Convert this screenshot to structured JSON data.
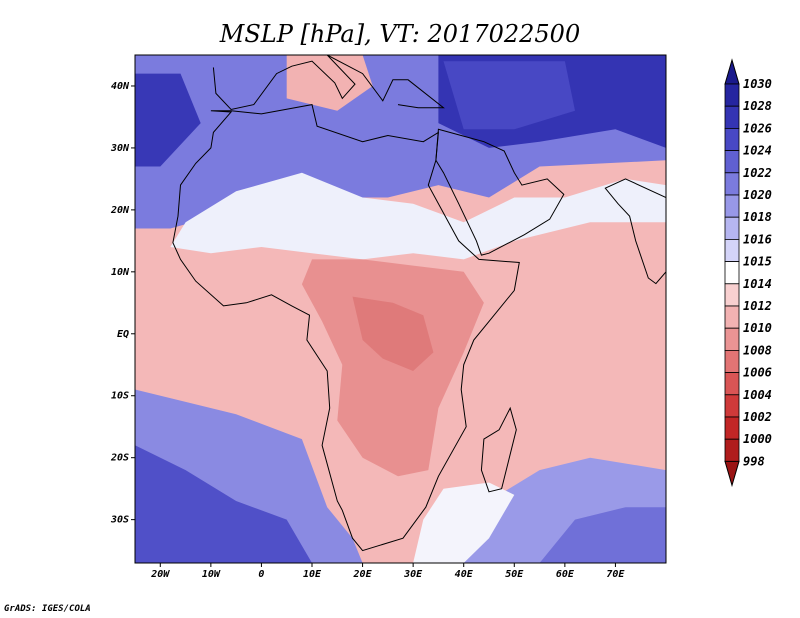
{
  "title": "MSLP [hPa], VT: 2017022500",
  "credit": "GrADS: IGES/COLA",
  "map": {
    "projection": "lat-lon",
    "lon_range": [
      -25,
      80
    ],
    "lat_range": [
      -37,
      45
    ],
    "lon_ticks": [
      {
        "value": -20,
        "label": "20W"
      },
      {
        "value": -10,
        "label": "10W"
      },
      {
        "value": 0,
        "label": "0"
      },
      {
        "value": 10,
        "label": "10E"
      },
      {
        "value": 20,
        "label": "20E"
      },
      {
        "value": 30,
        "label": "30E"
      },
      {
        "value": 40,
        "label": "40E"
      },
      {
        "value": 50,
        "label": "50E"
      },
      {
        "value": 60,
        "label": "60E"
      },
      {
        "value": 70,
        "label": "70E"
      }
    ],
    "lat_ticks": [
      {
        "value": 40,
        "label": "40N"
      },
      {
        "value": 30,
        "label": "30N"
      },
      {
        "value": 20,
        "label": "20N"
      },
      {
        "value": 10,
        "label": "10N"
      },
      {
        "value": 0,
        "label": "EQ"
      },
      {
        "value": -10,
        "label": "10S"
      },
      {
        "value": -20,
        "label": "20S"
      },
      {
        "value": -30,
        "label": "30S"
      }
    ]
  },
  "colorbar": {
    "labels": [
      "1030",
      "1028",
      "1026",
      "1024",
      "1022",
      "1020",
      "1018",
      "1016",
      "1015",
      "1014",
      "1012",
      "1010",
      "1008",
      "1006",
      "1004",
      "1002",
      "1000",
      "998"
    ],
    "colors": [
      "#1a1a8c",
      "#2525a0",
      "#3434b3",
      "#4848c4",
      "#6060d2",
      "#7b7bde",
      "#9898e8",
      "#b6b6f1",
      "#d4d4f8",
      "#ffffff",
      "#f8d0d0",
      "#f2b2b2",
      "#ea9494",
      "#e27474",
      "#d95555",
      "#cf3a3a",
      "#c22626",
      "#b01c1c",
      "#9a1414"
    ]
  },
  "field": {
    "background": "#f4b8b8",
    "regions": [
      {
        "name": "north-africa-high",
        "level": "1020",
        "color": "#7b7bde",
        "pts": [
          [
            -25,
            45
          ],
          [
            80,
            45
          ],
          [
            80,
            28
          ],
          [
            55,
            27
          ],
          [
            45,
            22
          ],
          [
            35,
            24
          ],
          [
            25,
            22
          ],
          [
            10,
            22
          ],
          [
            -5,
            20
          ],
          [
            -18,
            17
          ],
          [
            -25,
            17
          ]
        ]
      },
      {
        "name": "tibet-high",
        "level": "1026",
        "color": "#3434b3",
        "pts": [
          [
            35,
            45
          ],
          [
            80,
            45
          ],
          [
            80,
            30
          ],
          [
            70,
            33
          ],
          [
            55,
            31
          ],
          [
            45,
            30
          ],
          [
            35,
            34
          ]
        ]
      },
      {
        "name": "north-core-high",
        "level": "1024",
        "color": "#4848c4",
        "pts": [
          [
            36,
            44
          ],
          [
            60,
            44
          ],
          [
            62,
            36
          ],
          [
            50,
            33
          ],
          [
            40,
            33
          ]
        ]
      },
      {
        "name": "atlantic-high",
        "level": "1026",
        "color": "#3838b6",
        "pts": [
          [
            -25,
            42
          ],
          [
            -16,
            42
          ],
          [
            -12,
            34
          ],
          [
            -20,
            27
          ],
          [
            -25,
            27
          ]
        ]
      },
      {
        "name": "italy-low",
        "level": "1012",
        "color": "#f2b2b2",
        "pts": [
          [
            5,
            45
          ],
          [
            20,
            45
          ],
          [
            22,
            40
          ],
          [
            15,
            36
          ],
          [
            5,
            38
          ]
        ]
      },
      {
        "name": "sahara-white",
        "level": "1014",
        "color": "#eef0fb",
        "pts": [
          [
            -15,
            18
          ],
          [
            -5,
            23
          ],
          [
            8,
            26
          ],
          [
            20,
            22
          ],
          [
            30,
            21
          ],
          [
            40,
            18
          ],
          [
            50,
            22
          ],
          [
            60,
            22
          ],
          [
            72,
            25
          ],
          [
            80,
            24
          ],
          [
            80,
            18
          ],
          [
            65,
            18
          ],
          [
            50,
            15
          ],
          [
            40,
            12
          ],
          [
            30,
            13
          ],
          [
            20,
            12
          ],
          [
            10,
            13
          ],
          [
            0,
            14
          ],
          [
            -10,
            13
          ],
          [
            -18,
            14
          ]
        ]
      },
      {
        "name": "south-atlantic-high",
        "level": "1020",
        "color": "#8a8ae2",
        "pts": [
          [
            -25,
            -9
          ],
          [
            -15,
            -11
          ],
          [
            -5,
            -13
          ],
          [
            8,
            -17
          ],
          [
            13,
            -28
          ],
          [
            18,
            -33
          ],
          [
            20,
            -37
          ],
          [
            -25,
            -37
          ]
        ]
      },
      {
        "name": "south-atlantic-core",
        "level": "1024",
        "color": "#5050c8",
        "pts": [
          [
            -25,
            -18
          ],
          [
            -15,
            -22
          ],
          [
            -5,
            -27
          ],
          [
            5,
            -30
          ],
          [
            10,
            -37
          ],
          [
            -25,
            -37
          ]
        ]
      },
      {
        "name": "indian-ocean-high",
        "level": "1018",
        "color": "#9a9ae8",
        "pts": [
          [
            35,
            -37
          ],
          [
            38,
            -30
          ],
          [
            45,
            -27
          ],
          [
            55,
            -22
          ],
          [
            65,
            -20
          ],
          [
            80,
            -22
          ],
          [
            80,
            -37
          ]
        ]
      },
      {
        "name": "indian-ocean-core",
        "level": "1020",
        "color": "#7070d8",
        "pts": [
          [
            55,
            -37
          ],
          [
            62,
            -30
          ],
          [
            72,
            -28
          ],
          [
            80,
            -28
          ],
          [
            80,
            -37
          ]
        ]
      },
      {
        "name": "southern-africa-white",
        "level": "1015",
        "color": "#f4f4fc",
        "pts": [
          [
            30,
            -37
          ],
          [
            32,
            -30
          ],
          [
            36,
            -25
          ],
          [
            45,
            -24
          ],
          [
            50,
            -26
          ],
          [
            45,
            -33
          ],
          [
            40,
            -37
          ]
        ]
      },
      {
        "name": "central-africa-low",
        "level": "1008",
        "color": "#e89090",
        "pts": [
          [
            10,
            12
          ],
          [
            20,
            12
          ],
          [
            30,
            11
          ],
          [
            40,
            10
          ],
          [
            44,
            5
          ],
          [
            40,
            -3
          ],
          [
            35,
            -12
          ],
          [
            33,
            -22
          ],
          [
            27,
            -23
          ],
          [
            20,
            -20
          ],
          [
            15,
            -14
          ],
          [
            16,
            -5
          ],
          [
            12,
            2
          ],
          [
            8,
            8
          ]
        ]
      },
      {
        "name": "central-africa-core",
        "level": "1006",
        "color": "#df7a7a",
        "pts": [
          [
            18,
            6
          ],
          [
            26,
            5
          ],
          [
            32,
            3
          ],
          [
            34,
            -3
          ],
          [
            30,
            -6
          ],
          [
            24,
            -4
          ],
          [
            20,
            -1
          ]
        ]
      }
    ],
    "coast": [
      [
        -10,
        36
      ],
      [
        -6,
        36
      ],
      [
        0,
        35.5
      ],
      [
        10,
        37
      ],
      [
        11,
        33.5
      ],
      [
        20,
        31
      ],
      [
        25,
        32
      ],
      [
        32,
        31
      ],
      [
        35,
        32.5
      ],
      [
        34.5,
        28
      ],
      [
        33,
        24
      ],
      [
        37,
        18
      ],
      [
        39,
        15
      ],
      [
        43,
        12
      ],
      [
        51,
        11.5
      ],
      [
        50,
        7
      ],
      [
        45,
        2
      ],
      [
        42,
        -1
      ],
      [
        40,
        -5
      ],
      [
        39.5,
        -9
      ],
      [
        40.5,
        -15
      ],
      [
        35,
        -23
      ],
      [
        32.5,
        -28
      ],
      [
        28,
        -33
      ],
      [
        20,
        -35
      ],
      [
        18,
        -33
      ],
      [
        16,
        -28.5
      ],
      [
        15,
        -27
      ],
      [
        12,
        -18
      ],
      [
        13.5,
        -12
      ],
      [
        13,
        -6
      ],
      [
        9,
        -1
      ],
      [
        9.5,
        3
      ],
      [
        6,
        4.5
      ],
      [
        2,
        6.3
      ],
      [
        -3,
        5
      ],
      [
        -7.5,
        4.5
      ],
      [
        -13,
        8.5
      ],
      [
        -16,
        12
      ],
      [
        -17.5,
        14.7
      ],
      [
        -16.5,
        19
      ],
      [
        -16,
        24
      ],
      [
        -13,
        27.5
      ],
      [
        -10,
        30
      ],
      [
        -9.5,
        32.5
      ],
      [
        -6,
        35.8
      ],
      [
        -10,
        36
      ]
    ],
    "arabia": [
      [
        34.5,
        28
      ],
      [
        36,
        26
      ],
      [
        39,
        21
      ],
      [
        42.5,
        15
      ],
      [
        43.5,
        12.7
      ],
      [
        45,
        13
      ],
      [
        52,
        16
      ],
      [
        57,
        18.5
      ],
      [
        59.8,
        22.5
      ],
      [
        56.5,
        25
      ],
      [
        51.5,
        24
      ],
      [
        50,
        26
      ],
      [
        48,
        29.5
      ],
      [
        44,
        31
      ],
      [
        39.5,
        32
      ],
      [
        35,
        33
      ]
    ],
    "madagascar": [
      [
        49.2,
        -12
      ],
      [
        50.4,
        -15.5
      ],
      [
        47.5,
        -25
      ],
      [
        45,
        -25.5
      ],
      [
        43.5,
        -22
      ],
      [
        44,
        -17
      ],
      [
        47,
        -15.5
      ]
    ],
    "india": [
      [
        68,
        23.5
      ],
      [
        70.5,
        21
      ],
      [
        72.8,
        19
      ],
      [
        74,
        15
      ],
      [
        76.5,
        9
      ],
      [
        78,
        8.1
      ],
      [
        80,
        10
      ],
      [
        80,
        22
      ],
      [
        72,
        25
      ]
    ],
    "europe": [
      [
        -9.5,
        43
      ],
      [
        -9,
        38.8
      ],
      [
        -6,
        36.2
      ],
      [
        -1.5,
        37
      ],
      [
        3,
        42
      ],
      [
        6,
        43.2
      ],
      [
        10,
        44
      ],
      [
        14.5,
        40.5
      ],
      [
        16,
        38
      ],
      [
        18.5,
        40.3
      ],
      [
        13,
        45
      ],
      [
        20,
        42
      ],
      [
        24,
        37.6
      ],
      [
        26,
        41
      ],
      [
        29,
        41
      ],
      [
        36,
        36.5
      ],
      [
        31,
        36.5
      ],
      [
        27,
        37
      ]
    ]
  }
}
